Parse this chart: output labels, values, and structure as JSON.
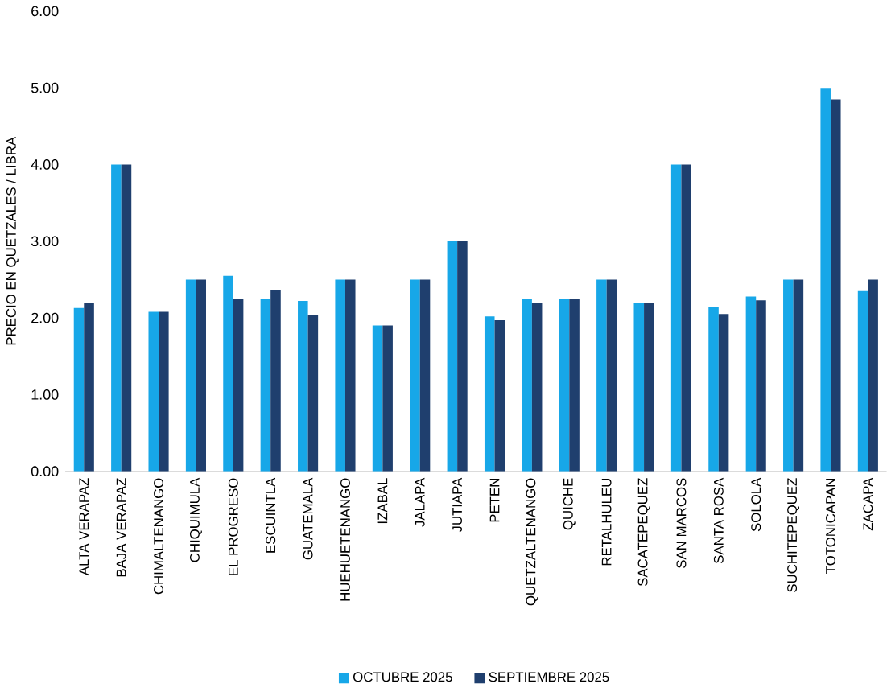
{
  "chart_data": {
    "type": "bar",
    "ylabel": "PRECIO EN QUETZALES / LIBRA",
    "categories": [
      "ALTA VERAPAZ",
      "BAJA VERAPAZ",
      "CHIMALTENANGO",
      "CHIQUIMULA",
      "EL PROGRESO",
      "ESCUINTLA",
      "GUATEMALA",
      "HUEHUETENANGO",
      "IZABAL",
      "JALAPA",
      "JUTIAPA",
      "PETEN",
      "QUETZALTENANGO",
      "QUICHE",
      "RETALHULEU",
      "SACATEPEQUEZ",
      "SAN MARCOS",
      "SANTA ROSA",
      "SOLOLA",
      "SUCHITEPEQUEZ",
      "TOTONICAPAN",
      "ZACAPA"
    ],
    "series": [
      {
        "name": "OCTUBRE 2025",
        "color": "#17a7e8",
        "values": [
          2.13,
          4.0,
          2.08,
          2.5,
          2.55,
          2.25,
          2.22,
          2.5,
          1.9,
          2.5,
          3.0,
          2.02,
          2.25,
          2.25,
          2.5,
          2.2,
          4.0,
          2.14,
          2.28,
          2.5,
          5.0,
          2.35
        ]
      },
      {
        "name": "SEPTIEMBRE 2025",
        "color": "#1f3f6e",
        "values": [
          2.19,
          4.0,
          2.08,
          2.5,
          2.25,
          2.36,
          2.04,
          2.5,
          1.9,
          2.5,
          3.0,
          1.97,
          2.2,
          2.25,
          2.5,
          2.2,
          4.0,
          2.05,
          2.23,
          2.5,
          4.85,
          2.5
        ]
      }
    ],
    "ylim": [
      0,
      6
    ],
    "yticks": [
      {
        "value": 0,
        "label": "0.00"
      },
      {
        "value": 1,
        "label": "1.00"
      },
      {
        "value": 2,
        "label": "2.00"
      },
      {
        "value": 3,
        "label": "3.00"
      },
      {
        "value": 4,
        "label": "4.00"
      },
      {
        "value": 5,
        "label": "5.00"
      },
      {
        "value": 6,
        "label": "6.00"
      }
    ],
    "legend": "bottom"
  }
}
